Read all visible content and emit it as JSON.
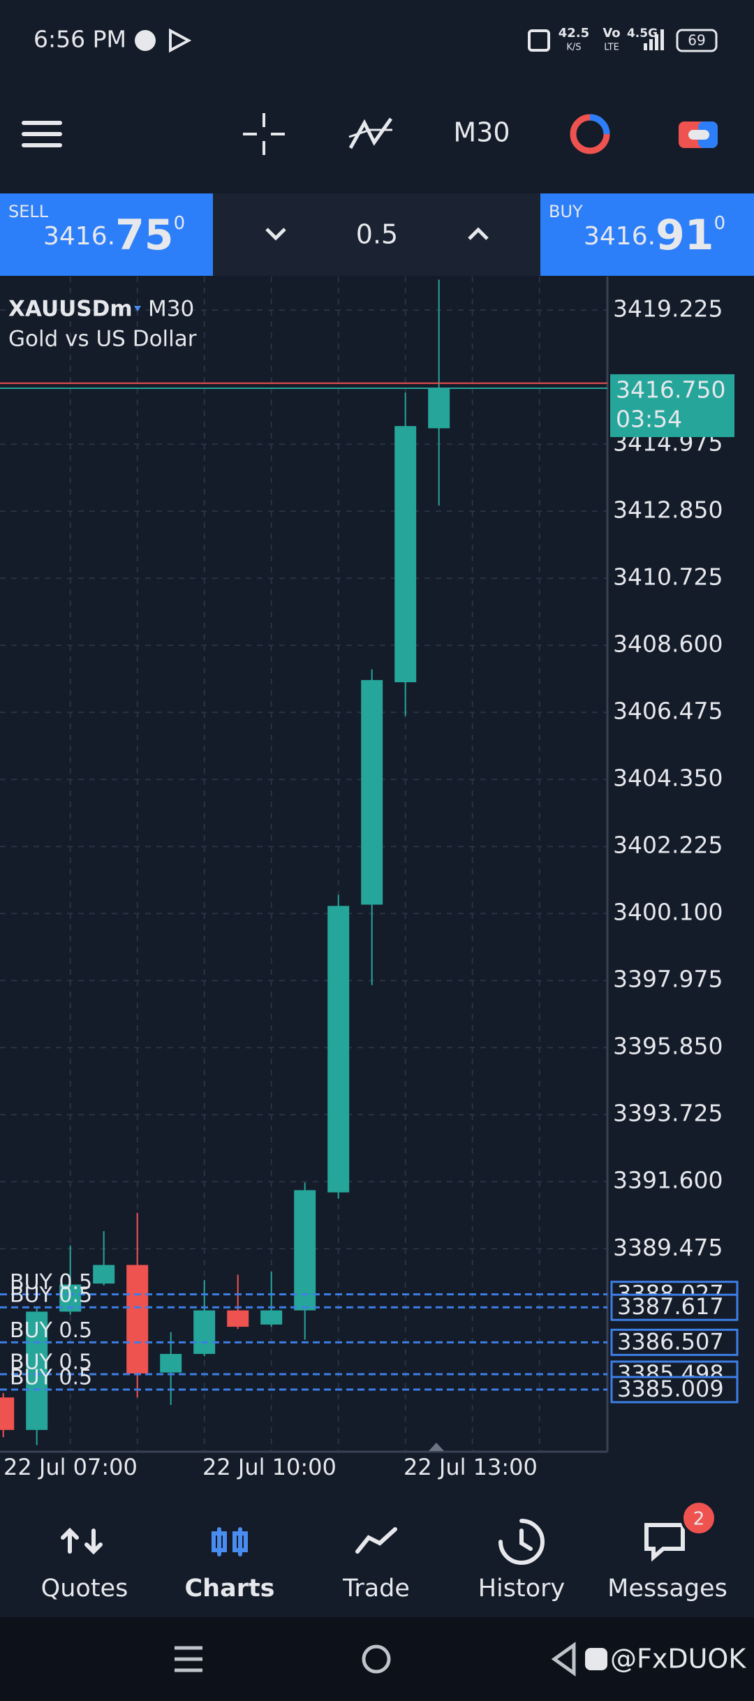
{
  "status_bar": {
    "time": "6:56 PM",
    "speed": "42.5",
    "speed_unit": "K/S",
    "volte": "Vo",
    "lte": "LTE",
    "network": "4.5G",
    "battery": 69
  },
  "toolbar": {
    "timeframe": "M30"
  },
  "trade_bar": {
    "sell": {
      "label": "SELL",
      "price_main": "3416.",
      "price_big": "75",
      "price_sup": "0"
    },
    "lot": "0.5",
    "buy": {
      "label": "BUY",
      "price_main": "3416.",
      "price_big": "91",
      "price_sup": "0"
    }
  },
  "chart": {
    "symbol": "XAUUSDm",
    "timeframe": "M30",
    "description": "Gold vs US Dollar",
    "ylim": [
      3383.04,
      3420.29
    ],
    "yticks": [
      3419.225,
      3414.975,
      {
        "value": 3412.85,
        "label": "3412.850"
      },
      3410.725,
      {
        "value": 3408.6,
        "label": "3408.600"
      },
      3406.475,
      {
        "value": 3404.35,
        "label": "3404.350"
      },
      3402.225,
      {
        "value": 3400.1,
        "label": "3400.100"
      },
      3397.975,
      {
        "value": 3395.85,
        "label": "3395.850"
      },
      3393.725,
      {
        "value": 3391.6,
        "label": "3391.600"
      },
      3389.475
    ],
    "grid": true,
    "up_color": "#26a69a",
    "down_color": "#ef5350",
    "candles": [
      {
        "open": 3384.76,
        "high": 3384.9,
        "low": 3383.5,
        "close": 3383.73
      },
      {
        "open": 3383.73,
        "high": 3387.62,
        "low": 3383.25,
        "close": 3387.48
      },
      {
        "open": 3387.48,
        "high": 3389.58,
        "low": 3387.38,
        "close": 3388.34
      },
      {
        "open": 3388.37,
        "high": 3390.03,
        "low": 3388.31,
        "close": 3388.96
      },
      {
        "open": 3388.96,
        "high": 3390.61,
        "low": 3384.76,
        "close": 3385.52
      },
      {
        "open": 3385.55,
        "high": 3386.83,
        "low": 3384.52,
        "close": 3386.14
      },
      {
        "open": 3386.14,
        "high": 3388.48,
        "low": 3386.07,
        "close": 3387.52
      },
      {
        "open": 3387.52,
        "high": 3388.65,
        "low": 3386.93,
        "close": 3387.0
      },
      {
        "open": 3387.07,
        "high": 3388.75,
        "low": 3387.0,
        "close": 3387.52
      },
      {
        "open": 3387.52,
        "high": 3391.57,
        "low": 3386.59,
        "close": 3391.33
      },
      {
        "open": 3391.26,
        "high": 3400.69,
        "low": 3391.06,
        "close": 3400.34
      },
      {
        "open": 3400.38,
        "high": 3407.84,
        "low": 3397.83,
        "close": 3407.5
      },
      {
        "open": 3407.43,
        "high": 3416.61,
        "low": 3406.36,
        "close": 3415.55
      },
      {
        "open": 3415.48,
        "high": 3420.19,
        "low": 3413.03,
        "close": 3416.75
      }
    ],
    "bid": {
      "value": 3416.75,
      "label": "3416.750"
    },
    "ask": 3416.91,
    "countdown": "03:54",
    "orders": [
      {
        "label": "BUY 0.5",
        "price": 3388.027
      },
      {
        "label": "BUY 0.5",
        "price": 3387.617
      },
      {
        "label": "BUY 0.5",
        "price": 3386.507
      },
      {
        "label": "BUY 0.5",
        "price": 3385.498
      },
      {
        "label": "BUY 0.5",
        "price": 3385.009
      }
    ],
    "time_labels": [
      "22 Jul 07:00",
      "22 Jul 10:00",
      "22 Jul 13:00"
    ]
  },
  "nav": {
    "items": [
      "Quotes",
      "Charts",
      "Trade",
      "History",
      "Messages"
    ],
    "badge": 2
  },
  "system_bar": {
    "watermark": "@FxDUOK"
  }
}
